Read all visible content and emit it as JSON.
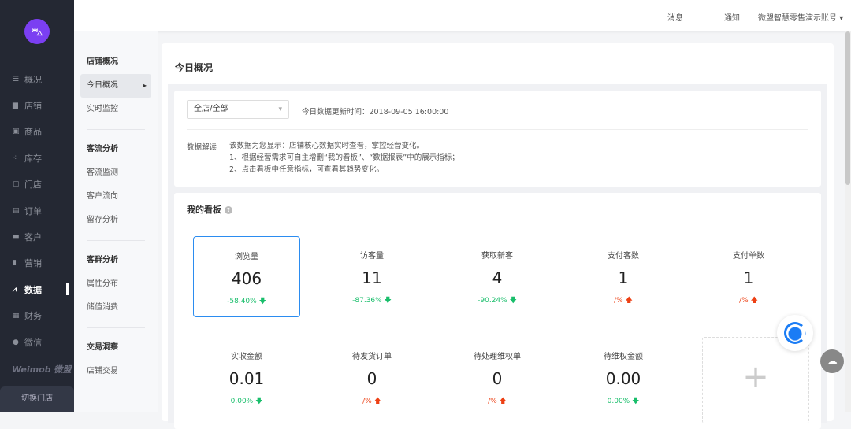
{
  "sidebar": {
    "items": [
      {
        "label": "概况",
        "icon": "list-icon",
        "glyph": "☰"
      },
      {
        "label": "店铺",
        "icon": "store-icon",
        "glyph": "▆"
      },
      {
        "label": "商品",
        "icon": "goods-icon",
        "glyph": "▣"
      },
      {
        "label": "库存",
        "icon": "inventory-icon",
        "glyph": "⁘"
      },
      {
        "label": "门店",
        "icon": "shop-icon",
        "glyph": "▢"
      },
      {
        "label": "订单",
        "icon": "order-icon",
        "glyph": "▤"
      },
      {
        "label": "客户",
        "icon": "customer-icon",
        "glyph": "▬"
      },
      {
        "label": "营销",
        "icon": "marketing-icon",
        "glyph": "▮"
      },
      {
        "label": "数据",
        "icon": "chart-line-icon",
        "glyph": "⩘"
      },
      {
        "label": "财务",
        "icon": "finance-icon",
        "glyph": "▦"
      },
      {
        "label": "微信",
        "icon": "wechat-icon",
        "glyph": "●"
      }
    ],
    "active": "数据",
    "brand": "Weimob 微盟",
    "switch_store": "切换门店",
    "logo": "shopping-bag-icon"
  },
  "submenu": {
    "groups": [
      {
        "title": "店铺概况",
        "items": [
          "今日概况",
          "实时监控"
        ]
      },
      {
        "title": "客流分析",
        "items": [
          "客流监测",
          "客户流向",
          "留存分析"
        ]
      },
      {
        "title": "客群分析",
        "items": [
          "属性分布",
          "储值消费"
        ]
      },
      {
        "title": "交易洞察",
        "items": [
          "店铺交易"
        ]
      }
    ],
    "active": "今日概况"
  },
  "header": {
    "messages": "消息",
    "notices": "通知",
    "account": "微盟智慧零售演示账号"
  },
  "main": {
    "title": "今日概况",
    "store_select": "全店/全部",
    "update_time": "今日数据更新时间：2018-09-05 16:00:00",
    "interpret_label": "数据解读",
    "interpret_lines": [
      "该数据为您显示：店铺核心数据实时查看，掌控经营变化。",
      "1、根据经营需求可自主增删“我的看板”、“数据报表”中的展示指标；",
      "2、点击看板中任意指标，可查看其趋势变化。"
    ],
    "board_title": "我的看板",
    "metrics": [
      {
        "name": "浏览量",
        "value": "406",
        "change": "-58.40%",
        "trend": "down"
      },
      {
        "name": "访客量",
        "value": "11",
        "change": "-87.36%",
        "trend": "down"
      },
      {
        "name": "获取新客",
        "value": "4",
        "change": "-90.24%",
        "trend": "down"
      },
      {
        "name": "支付客数",
        "value": "1",
        "change": "/%",
        "trend": "up"
      },
      {
        "name": "支付单数",
        "value": "1",
        "change": "/%",
        "trend": "up"
      },
      {
        "name": "实收金额",
        "value": "0.01",
        "change": "0.00%",
        "trend": "down"
      },
      {
        "name": "待发货订单",
        "value": "0",
        "change": "/%",
        "trend": "up"
      },
      {
        "name": "待处理维权单",
        "value": "0",
        "change": "/%",
        "trend": "up"
      },
      {
        "name": "待维权金额",
        "value": "0.00",
        "change": "0.00%",
        "trend": "down"
      }
    ],
    "add_label": "+"
  },
  "colors": {
    "accent": "#2b8cf0",
    "down": "#19be6b",
    "up": "#ed4014",
    "sidebar": "#242833",
    "logo": "#7b3ff2"
  }
}
